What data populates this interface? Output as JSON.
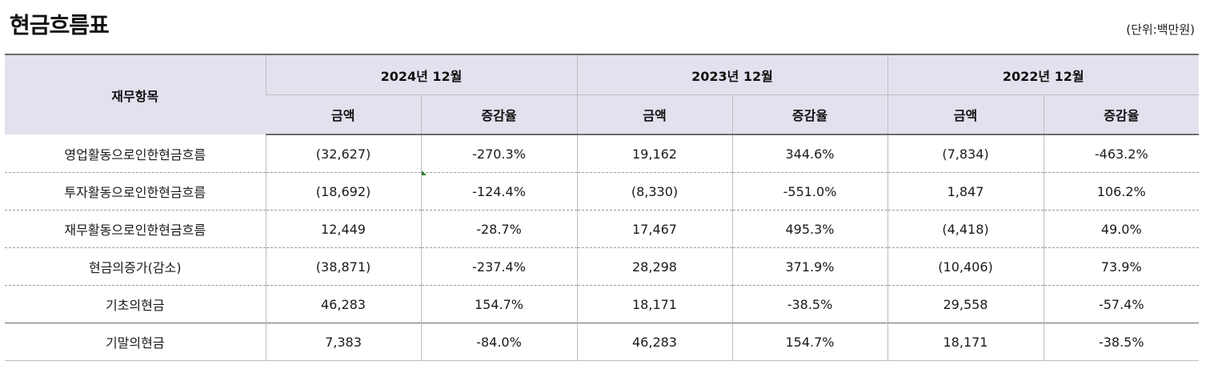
{
  "title": "현금흐름표",
  "unit": "(단위:백만원)",
  "header": {
    "item": "재무항목",
    "years": [
      "2024년 12월",
      "2023년 12월",
      "2022년 12월"
    ],
    "amount": "금액",
    "change": "증감율"
  },
  "rows": [
    {
      "label": "영업활동으로인한현금흐름",
      "values": [
        "(32,627)",
        "-270.3%",
        "19,162",
        "344.6%",
        "(7,834)",
        "-463.2%"
      ]
    },
    {
      "label": "투자활동으로인한현금흐름",
      "values": [
        "(18,692)",
        "-124.4%",
        "(8,330)",
        "-551.0%",
        "1,847",
        "106.2%"
      ]
    },
    {
      "label": "재무활동으로인한현금흐름",
      "values": [
        "12,449",
        "-28.7%",
        "17,467",
        "495.3%",
        "(4,418)",
        "49.0%"
      ]
    },
    {
      "label": "현금의증가(감소)",
      "values": [
        "(38,871)",
        "-237.4%",
        "28,298",
        "371.9%",
        "(10,406)",
        "73.9%"
      ]
    },
    {
      "label": "기초의현금",
      "values": [
        "46,283",
        "154.7%",
        "18,171",
        "-38.5%",
        "29,558",
        "-57.4%"
      ]
    },
    {
      "label": "기말의현금",
      "values": [
        "7,383",
        "-84.0%",
        "46,283",
        "154.7%",
        "18,171",
        "-38.5%"
      ]
    }
  ]
}
